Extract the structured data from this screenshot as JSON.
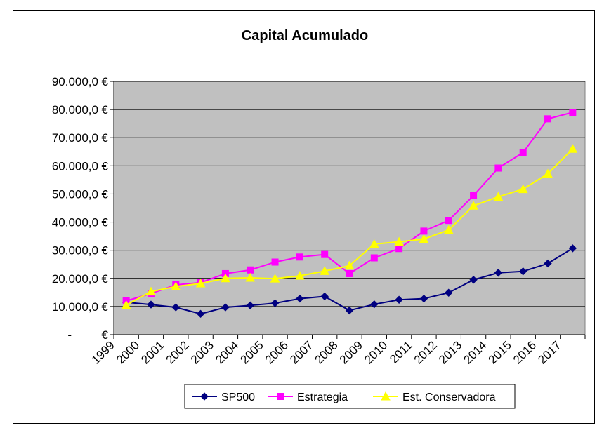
{
  "chart_data": {
    "type": "line",
    "title": "Capital Acumulado",
    "xlabel": "",
    "ylabel": "",
    "categories": [
      "1999",
      "2000",
      "2001",
      "2002",
      "2003",
      "2004",
      "2005",
      "2006",
      "2007",
      "2008",
      "2009",
      "2010",
      "2011",
      "2012",
      "2013",
      "2014",
      "2015",
      "2016",
      "2017"
    ],
    "ylim": [
      0,
      90000
    ],
    "yticks": [
      0,
      10000,
      20000,
      30000,
      40000,
      50000,
      60000,
      70000,
      80000,
      90000
    ],
    "ytick_labels": [
      "-       €",
      "10.000,0 €",
      "20.000,0 €",
      "30.000,0 €",
      "40.000,0 €",
      "50.000,0 €",
      "60.000,0 €",
      "70.000,0 €",
      "80.000,0 €",
      "90.000,0 €"
    ],
    "grid": true,
    "legend_position": "bottom",
    "series": [
      {
        "name": "SP500",
        "color": "#000080",
        "marker": "diamond",
        "values": [
          11500,
          10700,
          9700,
          7400,
          9700,
          10400,
          11200,
          12800,
          13600,
          8600,
          10800,
          12400,
          12800,
          14900,
          19500,
          22000,
          22500,
          25300,
          30700
        ]
      },
      {
        "name": "Estrategia",
        "color": "#ff00ff",
        "marker": "square",
        "values": [
          12000,
          14600,
          17700,
          18500,
          21700,
          23000,
          25800,
          27600,
          28500,
          21700,
          27300,
          30600,
          36800,
          40600,
          49400,
          59200,
          64700,
          76700,
          79000
        ]
      },
      {
        "name": "Est. Conservadora",
        "color": "#ffff00",
        "marker": "triangle",
        "values": [
          10500,
          15300,
          17100,
          18200,
          20000,
          20200,
          19900,
          20900,
          22600,
          24500,
          32200,
          33000,
          34000,
          37200,
          45800,
          49000,
          51700,
          57200,
          66000
        ]
      }
    ]
  }
}
